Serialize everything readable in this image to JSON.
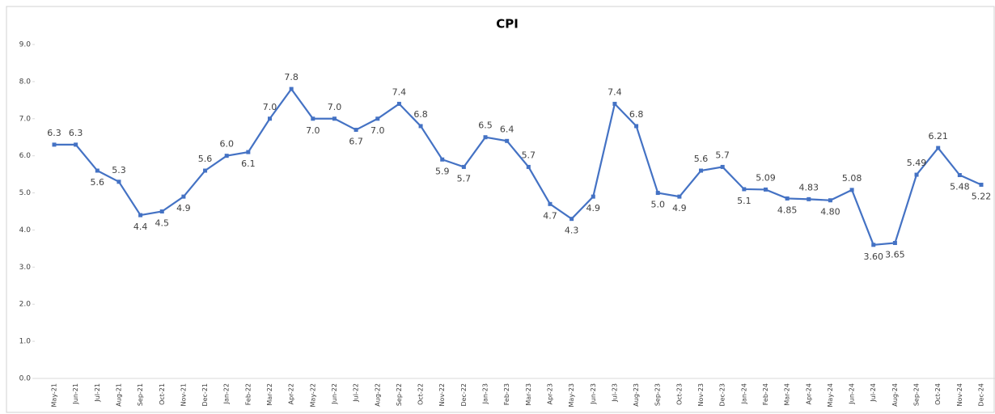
{
  "chart_data": {
    "type": "line",
    "title": "CPI",
    "categories": [
      "May-21",
      "Jun-21",
      "Jul-21",
      "Aug-21",
      "Sep-21",
      "Oct-21",
      "Nov-21",
      "Dec-21",
      "Jan-22",
      "Feb-22",
      "Mar-22",
      "Apr-22",
      "May-22",
      "Jun-22",
      "Jul-22",
      "Aug-22",
      "Sep-22",
      "Oct-22",
      "Nov-22",
      "Dec-22",
      "Jan-23",
      "Feb-23",
      "Mar-23",
      "Apr-23",
      "May-23",
      "Jun-23",
      "Jul-23",
      "Aug-23",
      "Sep-23",
      "Oct-23",
      "Nov-23",
      "Dec-23",
      "Jan-24",
      "Feb-24",
      "Mar-24",
      "Apr-24",
      "May-24",
      "Jun-24",
      "Jul-24",
      "Aug-24",
      "Sep-24",
      "Oct-24",
      "Nov-24",
      "Dec-24"
    ],
    "values": [
      6.3,
      6.3,
      5.6,
      5.3,
      4.4,
      4.5,
      4.9,
      5.6,
      6.0,
      6.1,
      7.0,
      7.8,
      7.0,
      7.0,
      6.7,
      7.0,
      7.4,
      6.8,
      5.9,
      5.7,
      6.5,
      6.4,
      5.7,
      4.7,
      4.3,
      4.9,
      7.4,
      6.8,
      5.0,
      4.9,
      5.6,
      5.7,
      5.1,
      5.09,
      4.85,
      4.83,
      4.8,
      5.08,
      3.6,
      3.65,
      5.49,
      6.21,
      5.48,
      5.22
    ],
    "value_labels": [
      "6.3",
      "6.3",
      "5.6",
      "5.3",
      "4.4",
      "4.5",
      "4.9",
      "5.6",
      "6.0",
      "6.1",
      "7.0",
      "7.8",
      "7.0",
      "7.0",
      "6.7",
      "7.0",
      "7.4",
      "6.8",
      "5.9",
      "5.7",
      "6.5",
      "6.4",
      "5.7",
      "4.7",
      "4.3",
      "4.9",
      "7.4",
      "6.8",
      "5.0",
      "4.9",
      "5.6",
      "5.7",
      "5.1",
      "5.09",
      "4.85",
      "4.83",
      "4.80",
      "5.08",
      "3.60",
      "3.65",
      "5.49",
      "6.21",
      "5.48",
      "5.22"
    ],
    "color": "#4472c4",
    "ylim": [
      0,
      9
    ],
    "yticks": [
      {
        "value": 0,
        "label": "0.0"
      },
      {
        "value": 1,
        "label": "1.0"
      },
      {
        "value": 2,
        "label": "2.0"
      },
      {
        "value": 3,
        "label": "3.0"
      },
      {
        "value": 4,
        "label": "4.0"
      },
      {
        "value": 5,
        "label": "5.0"
      },
      {
        "value": 6,
        "label": "6.0"
      },
      {
        "value": 7,
        "label": "7.0"
      },
      {
        "value": 8,
        "label": "8.0"
      },
      {
        "value": 9,
        "label": "9.0"
      }
    ]
  }
}
